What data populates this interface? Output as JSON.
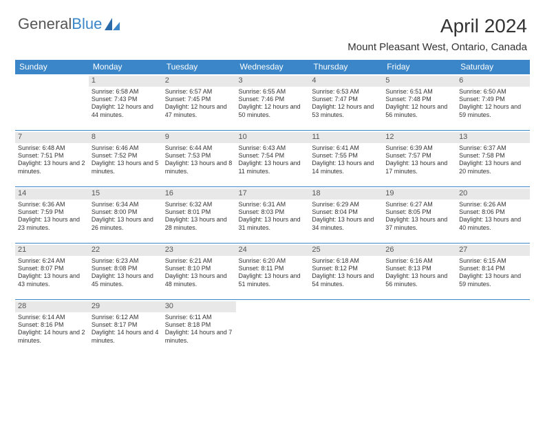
{
  "brand": {
    "part1": "General",
    "part2": "Blue"
  },
  "title": "April 2024",
  "location": "Mount Pleasant West, Ontario, Canada",
  "colors": {
    "header_bg": "#3a86c8",
    "header_text": "#ffffff",
    "daybar_bg": "#e8e8e8",
    "cell_border": "#3a86c8",
    "body_text": "#333333",
    "page_bg": "#ffffff"
  },
  "dayNames": [
    "Sunday",
    "Monday",
    "Tuesday",
    "Wednesday",
    "Thursday",
    "Friday",
    "Saturday"
  ],
  "weeks": [
    [
      {
        "day": "",
        "sunrise": "",
        "sunset": "",
        "daylight": ""
      },
      {
        "day": "1",
        "sunrise": "Sunrise: 6:58 AM",
        "sunset": "Sunset: 7:43 PM",
        "daylight": "Daylight: 12 hours and 44 minutes."
      },
      {
        "day": "2",
        "sunrise": "Sunrise: 6:57 AM",
        "sunset": "Sunset: 7:45 PM",
        "daylight": "Daylight: 12 hours and 47 minutes."
      },
      {
        "day": "3",
        "sunrise": "Sunrise: 6:55 AM",
        "sunset": "Sunset: 7:46 PM",
        "daylight": "Daylight: 12 hours and 50 minutes."
      },
      {
        "day": "4",
        "sunrise": "Sunrise: 6:53 AM",
        "sunset": "Sunset: 7:47 PM",
        "daylight": "Daylight: 12 hours and 53 minutes."
      },
      {
        "day": "5",
        "sunrise": "Sunrise: 6:51 AM",
        "sunset": "Sunset: 7:48 PM",
        "daylight": "Daylight: 12 hours and 56 minutes."
      },
      {
        "day": "6",
        "sunrise": "Sunrise: 6:50 AM",
        "sunset": "Sunset: 7:49 PM",
        "daylight": "Daylight: 12 hours and 59 minutes."
      }
    ],
    [
      {
        "day": "7",
        "sunrise": "Sunrise: 6:48 AM",
        "sunset": "Sunset: 7:51 PM",
        "daylight": "Daylight: 13 hours and 2 minutes."
      },
      {
        "day": "8",
        "sunrise": "Sunrise: 6:46 AM",
        "sunset": "Sunset: 7:52 PM",
        "daylight": "Daylight: 13 hours and 5 minutes."
      },
      {
        "day": "9",
        "sunrise": "Sunrise: 6:44 AM",
        "sunset": "Sunset: 7:53 PM",
        "daylight": "Daylight: 13 hours and 8 minutes."
      },
      {
        "day": "10",
        "sunrise": "Sunrise: 6:43 AM",
        "sunset": "Sunset: 7:54 PM",
        "daylight": "Daylight: 13 hours and 11 minutes."
      },
      {
        "day": "11",
        "sunrise": "Sunrise: 6:41 AM",
        "sunset": "Sunset: 7:55 PM",
        "daylight": "Daylight: 13 hours and 14 minutes."
      },
      {
        "day": "12",
        "sunrise": "Sunrise: 6:39 AM",
        "sunset": "Sunset: 7:57 PM",
        "daylight": "Daylight: 13 hours and 17 minutes."
      },
      {
        "day": "13",
        "sunrise": "Sunrise: 6:37 AM",
        "sunset": "Sunset: 7:58 PM",
        "daylight": "Daylight: 13 hours and 20 minutes."
      }
    ],
    [
      {
        "day": "14",
        "sunrise": "Sunrise: 6:36 AM",
        "sunset": "Sunset: 7:59 PM",
        "daylight": "Daylight: 13 hours and 23 minutes."
      },
      {
        "day": "15",
        "sunrise": "Sunrise: 6:34 AM",
        "sunset": "Sunset: 8:00 PM",
        "daylight": "Daylight: 13 hours and 26 minutes."
      },
      {
        "day": "16",
        "sunrise": "Sunrise: 6:32 AM",
        "sunset": "Sunset: 8:01 PM",
        "daylight": "Daylight: 13 hours and 28 minutes."
      },
      {
        "day": "17",
        "sunrise": "Sunrise: 6:31 AM",
        "sunset": "Sunset: 8:03 PM",
        "daylight": "Daylight: 13 hours and 31 minutes."
      },
      {
        "day": "18",
        "sunrise": "Sunrise: 6:29 AM",
        "sunset": "Sunset: 8:04 PM",
        "daylight": "Daylight: 13 hours and 34 minutes."
      },
      {
        "day": "19",
        "sunrise": "Sunrise: 6:27 AM",
        "sunset": "Sunset: 8:05 PM",
        "daylight": "Daylight: 13 hours and 37 minutes."
      },
      {
        "day": "20",
        "sunrise": "Sunrise: 6:26 AM",
        "sunset": "Sunset: 8:06 PM",
        "daylight": "Daylight: 13 hours and 40 minutes."
      }
    ],
    [
      {
        "day": "21",
        "sunrise": "Sunrise: 6:24 AM",
        "sunset": "Sunset: 8:07 PM",
        "daylight": "Daylight: 13 hours and 43 minutes."
      },
      {
        "day": "22",
        "sunrise": "Sunrise: 6:23 AM",
        "sunset": "Sunset: 8:08 PM",
        "daylight": "Daylight: 13 hours and 45 minutes."
      },
      {
        "day": "23",
        "sunrise": "Sunrise: 6:21 AM",
        "sunset": "Sunset: 8:10 PM",
        "daylight": "Daylight: 13 hours and 48 minutes."
      },
      {
        "day": "24",
        "sunrise": "Sunrise: 6:20 AM",
        "sunset": "Sunset: 8:11 PM",
        "daylight": "Daylight: 13 hours and 51 minutes."
      },
      {
        "day": "25",
        "sunrise": "Sunrise: 6:18 AM",
        "sunset": "Sunset: 8:12 PM",
        "daylight": "Daylight: 13 hours and 54 minutes."
      },
      {
        "day": "26",
        "sunrise": "Sunrise: 6:16 AM",
        "sunset": "Sunset: 8:13 PM",
        "daylight": "Daylight: 13 hours and 56 minutes."
      },
      {
        "day": "27",
        "sunrise": "Sunrise: 6:15 AM",
        "sunset": "Sunset: 8:14 PM",
        "daylight": "Daylight: 13 hours and 59 minutes."
      }
    ],
    [
      {
        "day": "28",
        "sunrise": "Sunrise: 6:14 AM",
        "sunset": "Sunset: 8:16 PM",
        "daylight": "Daylight: 14 hours and 2 minutes."
      },
      {
        "day": "29",
        "sunrise": "Sunrise: 6:12 AM",
        "sunset": "Sunset: 8:17 PM",
        "daylight": "Daylight: 14 hours and 4 minutes."
      },
      {
        "day": "30",
        "sunrise": "Sunrise: 6:11 AM",
        "sunset": "Sunset: 8:18 PM",
        "daylight": "Daylight: 14 hours and 7 minutes."
      },
      {
        "day": "",
        "sunrise": "",
        "sunset": "",
        "daylight": ""
      },
      {
        "day": "",
        "sunrise": "",
        "sunset": "",
        "daylight": ""
      },
      {
        "day": "",
        "sunrise": "",
        "sunset": "",
        "daylight": ""
      },
      {
        "day": "",
        "sunrise": "",
        "sunset": "",
        "daylight": ""
      }
    ]
  ]
}
